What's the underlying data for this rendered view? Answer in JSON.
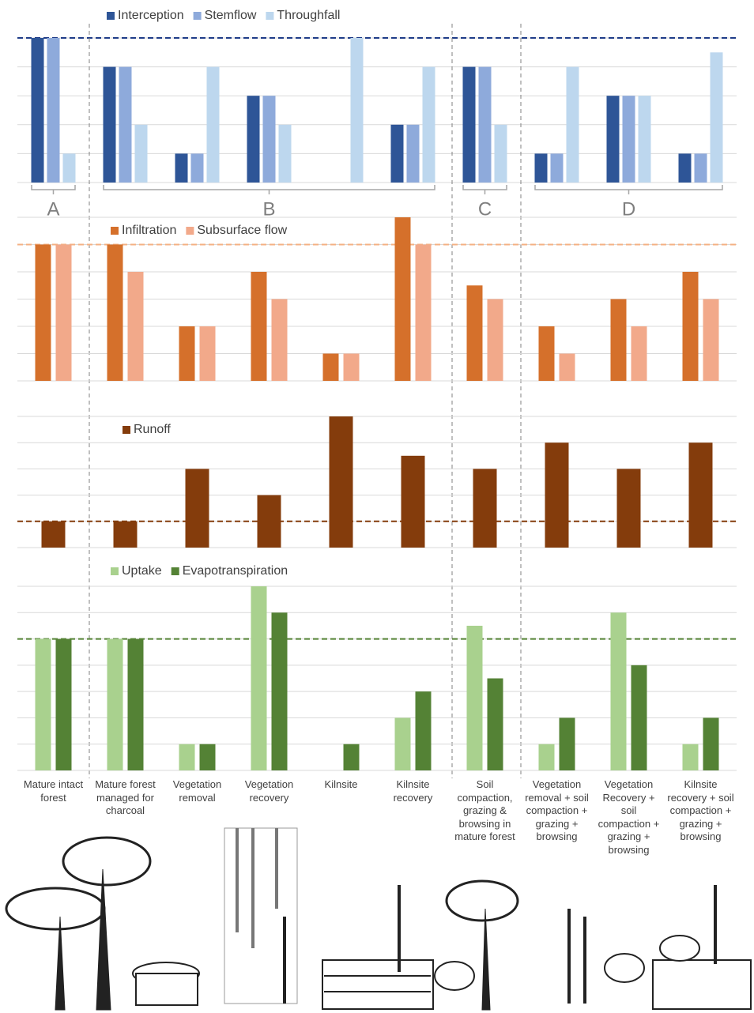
{
  "chart_data": [
    {
      "type": "bar",
      "ylim": [
        0,
        5
      ],
      "yticks": [
        0,
        1,
        2,
        3,
        4,
        5
      ],
      "grid": true,
      "reference_line": 5,
      "reference_color": "#1f3c88",
      "groups": [
        {
          "label": "A",
          "size": 1
        },
        {
          "label": "B",
          "size": 5
        },
        {
          "label": "C",
          "size": 1
        },
        {
          "label": "D",
          "size": 3
        }
      ],
      "series": [
        {
          "name": "Interception",
          "color": "#2e5597",
          "values": [
            5,
            4,
            1,
            3,
            0,
            2,
            4,
            1,
            3,
            1
          ]
        },
        {
          "name": "Stemflow",
          "color": "#8eaadb",
          "values": [
            5,
            4,
            1,
            3,
            0,
            2,
            4,
            1,
            3,
            1
          ]
        },
        {
          "name": "Throughfall",
          "color": "#bdd7ee",
          "values": [
            1,
            2,
            4,
            2,
            5,
            4,
            2,
            4,
            3,
            4.5
          ]
        }
      ]
    },
    {
      "type": "bar",
      "ylim": [
        0,
        6
      ],
      "yticks": [
        0,
        1,
        2,
        3,
        4,
        5,
        6
      ],
      "grid": true,
      "reference_line": 5,
      "reference_color": "#f4b183",
      "series": [
        {
          "name": "Infiltration",
          "color": "#d5702b",
          "values": [
            5,
            5,
            2,
            4,
            1,
            6,
            3.5,
            2,
            3,
            4
          ]
        },
        {
          "name": "Subsurface flow",
          "color": "#f2a98a",
          "values": [
            5,
            4,
            2,
            3,
            1,
            5,
            3,
            1,
            2,
            3
          ]
        }
      ]
    },
    {
      "type": "bar",
      "ylim": [
        0,
        5
      ],
      "yticks": [
        0,
        1,
        2,
        3,
        4,
        5
      ],
      "grid": true,
      "reference_line": 1,
      "reference_color": "#843c0c",
      "series": [
        {
          "name": "Runoff",
          "color": "#843c0c",
          "values": [
            1,
            1,
            3,
            2,
            5,
            3.5,
            3,
            4,
            3,
            4
          ]
        }
      ]
    },
    {
      "type": "bar",
      "ylim": [
        0,
        7
      ],
      "yticks": [
        0,
        1,
        2,
        3,
        4,
        5,
        6,
        7
      ],
      "grid": true,
      "reference_line": 5,
      "reference_color": "#548235",
      "categories": [
        "Mature intact forest",
        "Mature forest managed for charcoal",
        "Vegetation removal",
        "Vegetation recovery",
        "Kilnsite",
        "Kilnsite recovery",
        "Soil compaction, grazing & browsing in mature forest",
        "Vegetation removal + soil compaction + grazing + browsing",
        "Vegetation Recovery + soil compaction + grazing + browsing",
        "Kilnsite recovery + soil compaction + grazing + browsing"
      ],
      "series": [
        {
          "name": "Uptake",
          "color": "#a9d18e",
          "values": [
            5,
            5,
            1,
            7,
            0,
            2,
            5.5,
            1,
            6,
            1
          ]
        },
        {
          "name": "Evapotranspiration",
          "color": "#548235",
          "values": [
            5,
            5,
            1,
            6,
            1,
            3,
            3.5,
            2,
            4,
            2
          ]
        }
      ]
    }
  ]
}
